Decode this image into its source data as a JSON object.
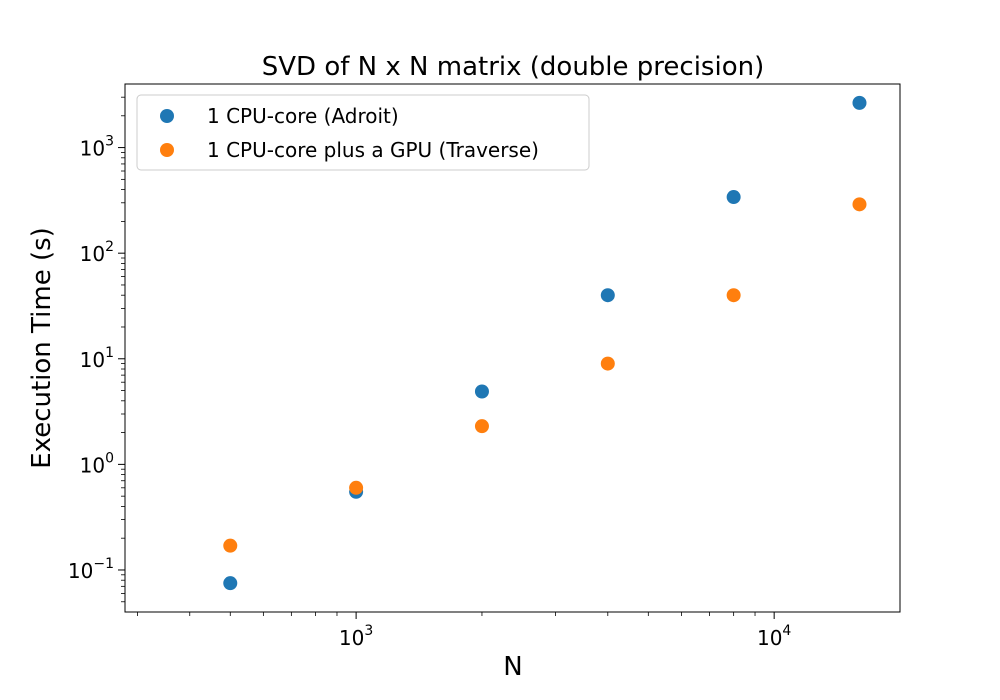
{
  "chart_data": {
    "type": "scatter",
    "title": "SVD of N x N matrix (double precision)",
    "xlabel": "N",
    "ylabel": "Execution Time (s)",
    "xscale": "log",
    "yscale": "log",
    "xlim": [
      280,
      20000
    ],
    "ylim": [
      0.04,
      4000
    ],
    "grid": false,
    "legend_position": "top-left",
    "x_ticks": [
      {
        "value": 1000,
        "base": "10",
        "exp": "3"
      },
      {
        "value": 10000,
        "base": "10",
        "exp": "4"
      }
    ],
    "y_ticks": [
      {
        "value": 0.1,
        "base": "10",
        "exp": "−1"
      },
      {
        "value": 1,
        "base": "10",
        "exp": "0"
      },
      {
        "value": 10,
        "base": "10",
        "exp": "1"
      },
      {
        "value": 100,
        "base": "10",
        "exp": "2"
      },
      {
        "value": 1000,
        "base": "10",
        "exp": "3"
      }
    ],
    "series": [
      {
        "name": "1 CPU-core (Adroit)",
        "color": "#1f77b4",
        "x": [
          500,
          1000,
          2000,
          4000,
          8000,
          16000
        ],
        "y": [
          0.075,
          0.55,
          4.9,
          40,
          340,
          2650
        ]
      },
      {
        "name": "1 CPU-core plus a GPU (Traverse)",
        "color": "#ff7f0e",
        "x": [
          500,
          1000,
          2000,
          4000,
          8000,
          16000
        ],
        "y": [
          0.17,
          0.6,
          2.3,
          9,
          40,
          290
        ]
      }
    ]
  }
}
